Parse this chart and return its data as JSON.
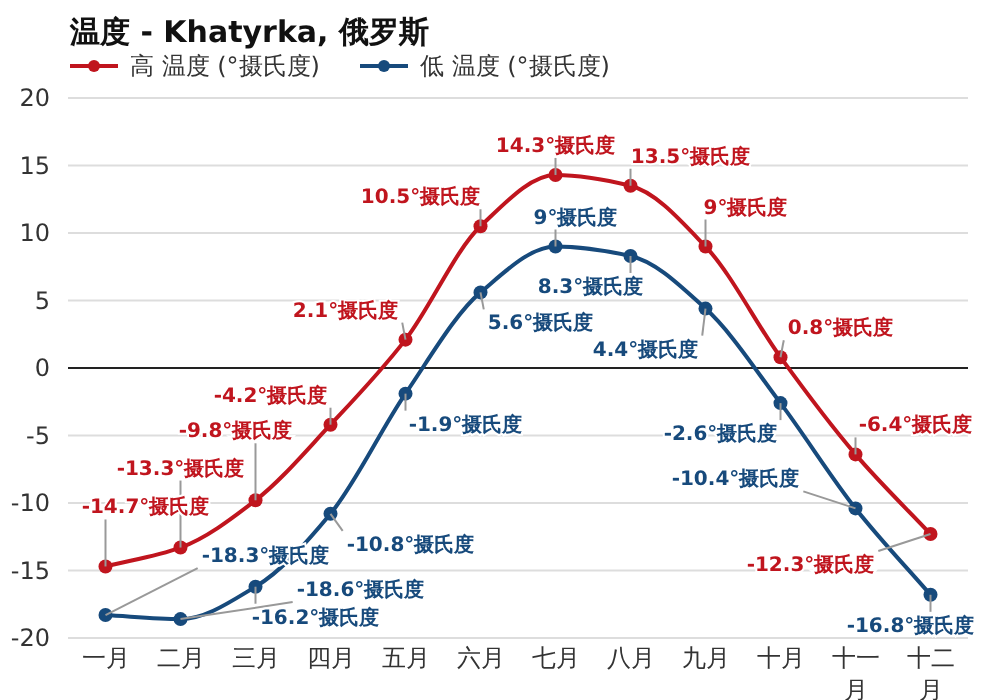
{
  "chart_data": {
    "type": "line",
    "title": "温度 - Khatyrka, 俄罗斯",
    "categories": [
      "一月",
      "二月",
      "三月",
      "四月",
      "五月",
      "六月",
      "七月",
      "八月",
      "九月",
      "十月",
      "十一月",
      "十二月"
    ],
    "series": [
      {
        "name": "高 温度 (°摄氏度)",
        "color": "#c0151e",
        "values": [
          -14.7,
          -13.3,
          -9.8,
          -4.2,
          2.1,
          10.5,
          14.3,
          13.5,
          9,
          0.8,
          -6.4,
          -12.3
        ],
        "value_labels": [
          "-14.7°摄氏度",
          "-13.3°摄氏度",
          "-9.8°摄氏度",
          "-4.2°摄氏度",
          "2.1°摄氏度",
          "10.5°摄氏度",
          "14.3°摄氏度",
          "13.5°摄氏度",
          "9°摄氏度",
          "0.8°摄氏度",
          "-6.4°摄氏度",
          "-12.3°摄氏度"
        ]
      },
      {
        "name": "低 温度 (°摄氏度)",
        "color": "#174a7c",
        "values": [
          -18.3,
          -18.6,
          -16.2,
          -10.8,
          -1.9,
          5.6,
          9,
          8.3,
          4.4,
          -2.6,
          -10.4,
          -16.8
        ],
        "value_labels": [
          "-18.3°摄氏度",
          "-18.6°摄氏度",
          "-16.2°摄氏度",
          "-10.8°摄氏度",
          "-1.9°摄氏度",
          "5.6°摄氏度",
          "9°摄氏度",
          "8.3°摄氏度",
          "4.4°摄氏度",
          "-2.6°摄氏度",
          "-10.4°摄氏度",
          "-16.8°摄氏度"
        ]
      }
    ],
    "ylim": [
      -20,
      20
    ],
    "yticks": [
      -20,
      -15,
      -10,
      -5,
      0,
      5,
      10,
      15,
      20
    ],
    "grid": "y",
    "legend": "top left",
    "marker": "circle",
    "line_style": "solid",
    "ref_lines": [
      {
        "axis": "y",
        "value": 0,
        "color": "#222222"
      }
    ]
  }
}
